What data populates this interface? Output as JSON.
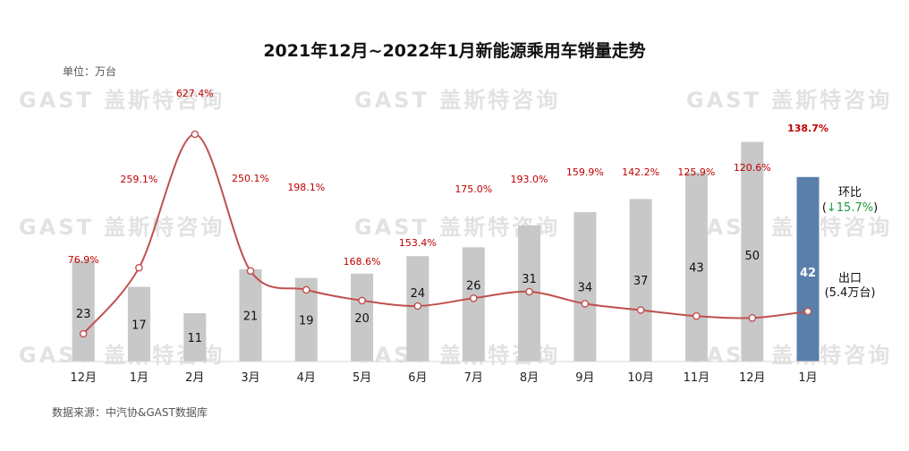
{
  "chart_data": {
    "type": "bar",
    "title": "2021年12月~2022年1月新能源乘用车销量走势",
    "unit_label": "单位：万台",
    "source_label": "数据来源：中汽协&GAST数据库",
    "watermark": "GAST 盖斯特咨询",
    "categories": [
      "12月",
      "1月",
      "2月",
      "3月",
      "4月",
      "5月",
      "6月",
      "7月",
      "8月",
      "9月",
      "10月",
      "11月",
      "12月",
      "1月"
    ],
    "series": [
      {
        "values": [
          23,
          17,
          11,
          21,
          19,
          20,
          24,
          26,
          31,
          34,
          37,
          43,
          50,
          42
        ],
        "labels": [
          "23",
          "17",
          "11",
          "21",
          "19",
          "20",
          "24",
          "26",
          "31",
          "34",
          "37",
          "43",
          "50",
          "42"
        ]
      },
      {
        "type": "line",
        "labels": [
          "76.9%",
          "259.1%",
          "627.4%",
          "250.1%",
          "198.1%",
          "168.6%",
          "153.4%",
          "175.0%",
          "193.0%",
          "159.9%",
          "142.2%",
          "125.9%",
          "120.6%",
          "138.7%"
        ]
      }
    ],
    "ylim": [
      0,
      55
    ],
    "highlight_index": 13,
    "colors": {
      "bar": "#c8c8c8",
      "bar_highlight": "#5b7fab",
      "line": "#c0504d",
      "pct_text": "#c00000",
      "mom_change": "#1a9a3a"
    },
    "annotations": {
      "mom_label": "环比",
      "mom_open": "(",
      "mom_value": "↓15.7%",
      "mom_close": ")",
      "export_label": "出口",
      "export_value": "(5.4万台)"
    }
  }
}
